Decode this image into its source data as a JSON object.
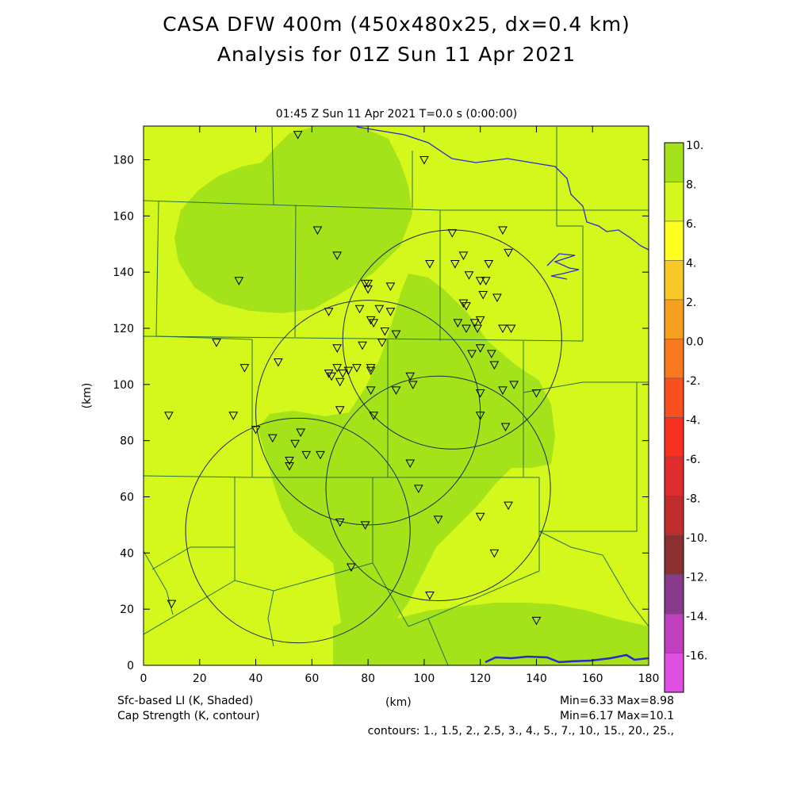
{
  "title_line1": "CASA DFW 400m (450x480x25, dx=0.4 km)",
  "title_line2": "Analysis for 01Z Sun 11 Apr 2021",
  "subtitle": "01:45 Z Sun 11 Apr 2021    T=0.0 s (0:00:00)",
  "footer": {
    "field1": "Sfc-based LI (K, Shaded)",
    "field2": "Cap Strength (K, contour)",
    "xunit": "(km)",
    "minmax1": "Min=6.33 Max=8.98",
    "minmax2": "Min=6.17 Max=10.1",
    "contours": "contours: 1., 1.5, 2., 2.5, 3., 4., 5., 7., 10., 15., 20., 25.,"
  },
  "axes": {
    "ylabel": "(km)",
    "x_ticks": [
      "0",
      "20",
      "40",
      "60",
      "80",
      "100",
      "120",
      "140",
      "160",
      "180"
    ],
    "y_ticks": [
      "0",
      "20",
      "40",
      "60",
      "80",
      "100",
      "120",
      "140",
      "160",
      "180"
    ],
    "x_range": [
      0,
      180
    ],
    "y_range": [
      0,
      192
    ]
  },
  "colors": {
    "field_light": "#d4f81c",
    "field_dark": "#a4e21a",
    "state_line": "#2a7040",
    "river": "#2a2acc"
  },
  "colorbar": {
    "labels": [
      "10.",
      "8.",
      "6.",
      "4.",
      "2.",
      "0.0",
      "-2.",
      "-4.",
      "-6.",
      "-8.",
      "-10.",
      "-12.",
      "-14.",
      "-16."
    ],
    "colors": [
      "#a4e21a",
      "#d4f81c",
      "#ffff20",
      "#f8c828",
      "#f8a020",
      "#f87820",
      "#f85020",
      "#f83020",
      "#e02c2c",
      "#c02c2c",
      "#8a3030",
      "#8a3a8a",
      "#c040c0",
      "#e050e0"
    ]
  },
  "radar_rings_km": [
    {
      "cx": 110,
      "cy": 116,
      "r": 39
    },
    {
      "cx": 80,
      "cy": 90,
      "r": 40
    },
    {
      "cx": 105,
      "cy": 63,
      "r": 40
    },
    {
      "cx": 55,
      "cy": 48,
      "r": 40
    }
  ],
  "station_markers_km": [
    [
      55,
      189
    ],
    [
      100,
      180
    ],
    [
      62,
      155
    ],
    [
      128,
      155
    ],
    [
      130,
      147
    ],
    [
      69,
      146
    ],
    [
      110,
      154
    ],
    [
      114,
      146
    ],
    [
      111,
      143
    ],
    [
      123,
      143
    ],
    [
      102,
      143
    ],
    [
      34,
      137
    ],
    [
      79,
      136
    ],
    [
      80,
      136
    ],
    [
      80,
      134
    ],
    [
      88,
      135
    ],
    [
      116,
      139
    ],
    [
      120,
      137
    ],
    [
      122,
      137
    ],
    [
      121,
      132
    ],
    [
      126,
      131
    ],
    [
      66,
      126
    ],
    [
      77,
      127
    ],
    [
      84,
      127
    ],
    [
      88,
      126
    ],
    [
      114,
      129
    ],
    [
      115,
      128
    ],
    [
      81,
      123
    ],
    [
      82,
      122
    ],
    [
      86,
      119
    ],
    [
      90,
      118
    ],
    [
      112,
      122
    ],
    [
      115,
      120
    ],
    [
      118,
      122
    ],
    [
      120,
      123
    ],
    [
      119,
      120
    ],
    [
      128,
      120
    ],
    [
      131,
      120
    ],
    [
      26,
      115
    ],
    [
      69,
      113
    ],
    [
      78,
      114
    ],
    [
      85,
      115
    ],
    [
      117,
      111
    ],
    [
      120,
      113
    ],
    [
      124,
      111
    ],
    [
      125,
      107
    ],
    [
      36,
      106
    ],
    [
      48,
      108
    ],
    [
      69,
      106
    ],
    [
      76,
      106
    ],
    [
      81,
      106
    ],
    [
      81,
      105
    ],
    [
      95,
      103
    ],
    [
      66,
      104
    ],
    [
      67,
      103
    ],
    [
      71,
      104
    ],
    [
      73,
      105
    ],
    [
      70,
      101
    ],
    [
      81,
      98
    ],
    [
      90,
      98
    ],
    [
      96,
      100
    ],
    [
      120,
      97
    ],
    [
      128,
      98
    ],
    [
      132,
      100
    ],
    [
      140,
      97
    ],
    [
      9,
      89
    ],
    [
      32,
      89
    ],
    [
      70,
      91
    ],
    [
      82,
      89
    ],
    [
      120,
      89
    ],
    [
      129,
      85
    ],
    [
      40,
      84
    ],
    [
      46,
      81
    ],
    [
      56,
      83
    ],
    [
      54,
      79
    ],
    [
      58,
      75
    ],
    [
      63,
      75
    ],
    [
      52,
      73
    ],
    [
      52,
      71
    ],
    [
      95,
      72
    ],
    [
      98,
      63
    ],
    [
      130,
      57
    ],
    [
      120,
      53
    ],
    [
      105,
      52
    ],
    [
      70,
      51
    ],
    [
      79,
      50
    ],
    [
      125,
      40
    ],
    [
      74,
      35
    ],
    [
      10,
      22
    ],
    [
      102,
      25
    ],
    [
      140,
      16
    ]
  ]
}
